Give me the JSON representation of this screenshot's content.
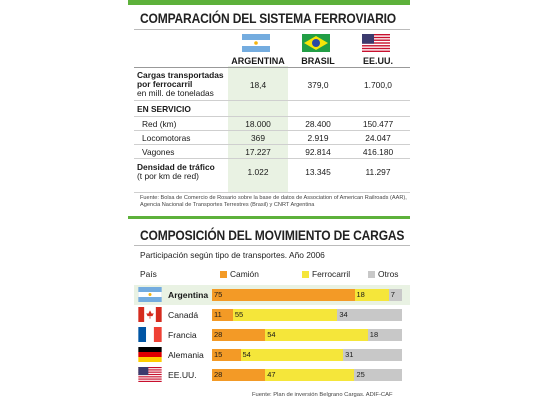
{
  "section1": {
    "title": "COMPARACIÓN DEL SISTEMA FERROVIARIO",
    "columns": [
      "ARGENTINA",
      "BRASIL",
      "EE.UU."
    ],
    "rows": [
      {
        "label_lines": [
          "Cargas transportadas",
          "por ferrocarril"
        ],
        "sublabel": "en mill. de toneladas",
        "values": [
          "18,4",
          "379,0",
          "1.700,0"
        ]
      },
      {
        "group": "EN SERVICIO"
      },
      {
        "label": "Red (km)",
        "values": [
          "18.000",
          "28.400",
          "150.477"
        ]
      },
      {
        "label": "Locomotoras",
        "values": [
          "369",
          "2.919",
          "24.047"
        ]
      },
      {
        "label": "Vagones",
        "values": [
          "17.227",
          "92.814",
          "416.180"
        ]
      },
      {
        "label_lines": [
          "Densidad de tráfico"
        ],
        "sublabel": "(t por km de red)",
        "values": [
          "1.022",
          "13.345",
          "11.297"
        ]
      }
    ],
    "source": "Fuente: Bolsa de Comercio de Rosario sobre la base de datos de Association of American Railroads (AAR), Agencia Nacional de Transportes Terrestres (Brasil) y CNRT Argentina"
  },
  "section2": {
    "title": "COMPOSICIÓN DEL MOVIMIENTO DE CARGAS",
    "subtitle": "Participación según tipo de transportes. Año 2006",
    "legend_header": "País",
    "source": "Fuente: Plan de inversión Belgrano Cargas. ADIF-CAF"
  },
  "colors": {
    "green": "#5db13b",
    "camion": "#f39a26",
    "ferrocarril": "#f5e63a",
    "otros": "#c8c8c8"
  },
  "chart_data": {
    "type": "bar",
    "orientation": "horizontal-stacked",
    "categories": [
      "Argentina",
      "Canadá",
      "Francia",
      "Alemania",
      "EE.UU."
    ],
    "series": [
      {
        "name": "Camión",
        "values": [
          75,
          11,
          28,
          15,
          28
        ]
      },
      {
        "name": "Ferrocarril",
        "values": [
          18,
          55,
          54,
          54,
          47
        ]
      },
      {
        "name": "Otros",
        "values": [
          7,
          34,
          18,
          31,
          25
        ]
      }
    ],
    "xlim": [
      0,
      100
    ],
    "legend_position": "top",
    "title": "COMPOSICIÓN DEL MOVIMIENTO DE CARGAS",
    "subtitle": "Participación según tipo de transportes. Año 2006"
  }
}
